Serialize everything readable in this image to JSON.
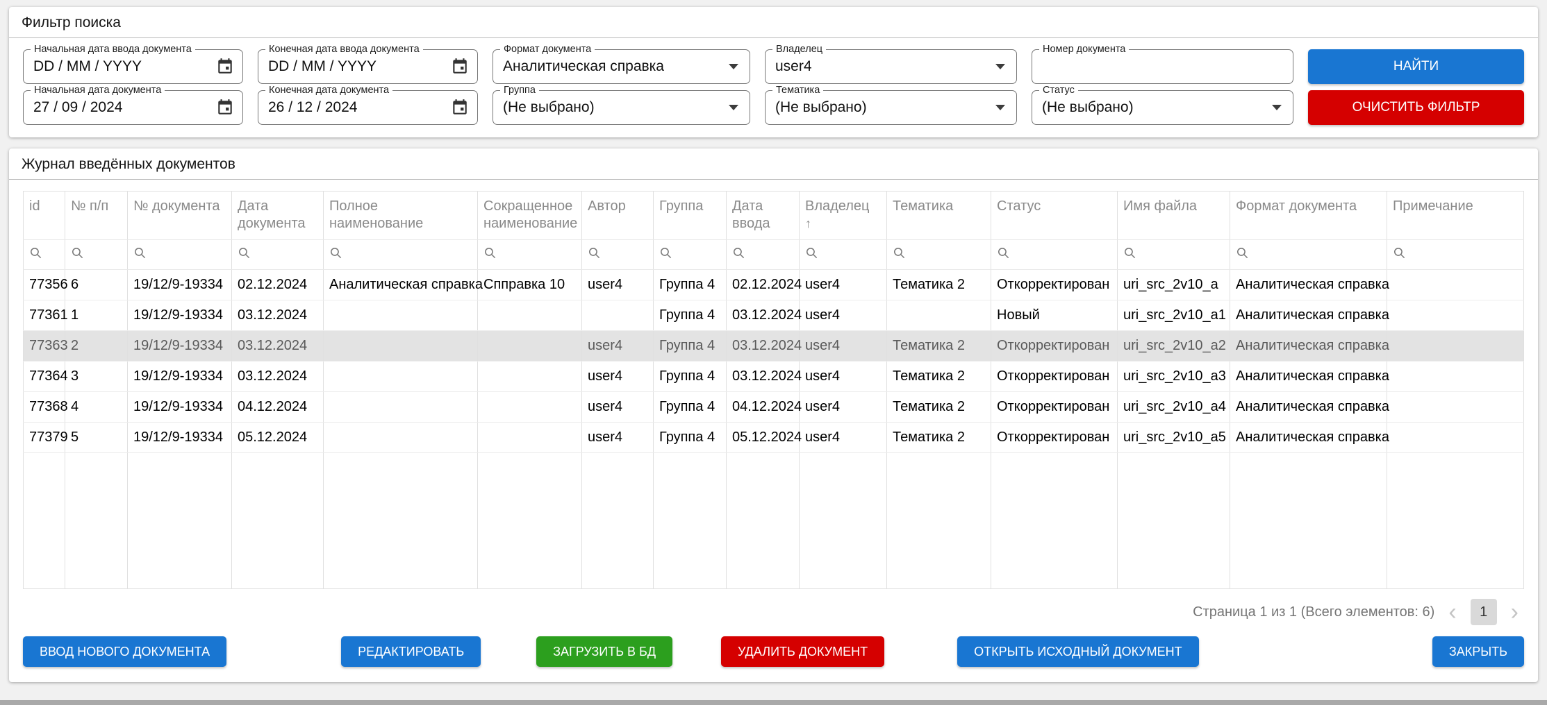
{
  "filter_panel": {
    "title": "Фильтр поиска",
    "fields": {
      "start_entry_date": {
        "label": "Начальная дата ввода документа",
        "value": "DD / MM / YYYY"
      },
      "end_entry_date": {
        "label": "Конечная дата ввода документа",
        "value": "DD / MM / YYYY"
      },
      "doc_format": {
        "label": "Формат документа",
        "value": "Аналитическая справка"
      },
      "owner": {
        "label": "Владелец",
        "value": "user4"
      },
      "doc_number": {
        "label": "Номер документа",
        "value": ""
      },
      "start_doc_date": {
        "label": "Начальная дата документа",
        "value": "27 / 09 / 2024"
      },
      "end_doc_date": {
        "label": "Конечная дата документа",
        "value": "26 / 12 / 2024"
      },
      "group": {
        "label": "Группа",
        "value": "(Не выбрано)"
      },
      "theme": {
        "label": "Тематика",
        "value": "(Не выбрано)"
      },
      "status": {
        "label": "Статус",
        "value": "(Не выбрано)"
      }
    },
    "buttons": {
      "search": "НАЙТИ",
      "clear": "ОЧИСТИТЬ ФИЛЬТР"
    }
  },
  "journal": {
    "title": "Журнал введённых документов",
    "columns": [
      "id",
      "№ п/п",
      "№ документа",
      "Дата документа",
      "Полное наименование",
      "Сокращенное наименование",
      "Автор",
      "Группа",
      "Дата ввода",
      "Владелец",
      "Тематика",
      "Статус",
      "Имя файла",
      "Формат документа",
      "Примечание"
    ],
    "sorted_column_index": 9,
    "sort_icon": "↑",
    "rows": [
      [
        "77356",
        "6",
        "19/12/9-19334",
        "02.12.2024",
        "Аналитическая справка",
        "Спправка 10",
        "user4",
        "Группа 4",
        "02.12.2024",
        "user4",
        "Тематика 2",
        "Откорректирован",
        "uri_src_2v10_a",
        "Аналитическая справка",
        ""
      ],
      [
        "77361",
        "1",
        "19/12/9-19334",
        "03.12.2024",
        "",
        "",
        "",
        "Группа 4",
        "03.12.2024",
        "user4",
        "",
        "Новый",
        "uri_src_2v10_a1",
        "Аналитическая справка",
        ""
      ],
      [
        "77363",
        "2",
        "19/12/9-19334",
        "03.12.2024",
        "",
        "",
        "user4",
        "Группа 4",
        "03.12.2024",
        "user4",
        "Тематика 2",
        "Откорректирован",
        "uri_src_2v10_a2",
        "Аналитическая справка",
        ""
      ],
      [
        "77364",
        "3",
        "19/12/9-19334",
        "03.12.2024",
        "",
        "",
        "user4",
        "Группа 4",
        "03.12.2024",
        "user4",
        "Тематика 2",
        "Откорректирован",
        "uri_src_2v10_a3",
        "Аналитическая справка",
        ""
      ],
      [
        "77368",
        "4",
        "19/12/9-19334",
        "04.12.2024",
        "",
        "",
        "user4",
        "Группа 4",
        "04.12.2024",
        "user4",
        "Тематика 2",
        "Откорректирован",
        "uri_src_2v10_a4",
        "Аналитическая справка",
        ""
      ],
      [
        "77379",
        "5",
        "19/12/9-19334",
        "05.12.2024",
        "",
        "",
        "user4",
        "Группа 4",
        "05.12.2024",
        "user4",
        "Тематика 2",
        "Откорректирован",
        "uri_src_2v10_a5",
        "Аналитическая справка",
        ""
      ]
    ],
    "selected_row_index": 2,
    "pagination": {
      "text": "Страница 1 из 1 (Всего элементов: 6)",
      "page": "1",
      "prev_icon": "‹",
      "next_icon": "›"
    }
  },
  "actions": {
    "new_doc": "ВВОД НОВОГО ДОКУМЕНТА",
    "edit": "РЕДАКТИРОВАТЬ",
    "load_db": "ЗАГРУЗИТЬ В БД",
    "delete": "УДАЛИТЬ ДОКУМЕНТ",
    "open_source": "ОТКРЫТЬ ИСХОДНЫЙ ДОКУМЕНТ",
    "close": "ЗАКРЫТЬ"
  },
  "colors": {
    "primary_blue": "#1976d2",
    "danger_red": "#d50000",
    "success_green": "#2c9f1e"
  }
}
